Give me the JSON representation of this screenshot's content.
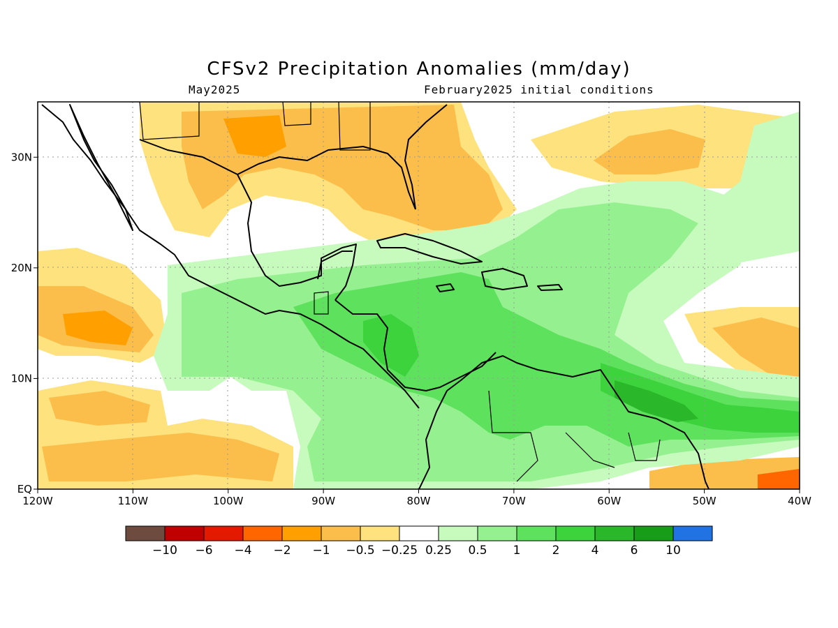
{
  "map": {
    "title": "CFSv2 Precipitation Anomalies (mm/day)",
    "valid_month": "May2025",
    "initial_conditions": "February2025 initial conditions",
    "x_ticks": [
      "120W",
      "110W",
      "100W",
      "90W",
      "80W",
      "70W",
      "60W",
      "50W",
      "40W"
    ],
    "y_ticks": [
      "EQ",
      "10N",
      "20N",
      "30N"
    ],
    "extent": {
      "lon": [
        -120,
        -40
      ],
      "lat": [
        0,
        35
      ]
    }
  },
  "colorbar": {
    "colors": [
      "#6e4b3f",
      "#c00000",
      "#e31a00",
      "#ff6600",
      "#ff9f00",
      "#fbbe4a",
      "#fde27e",
      "#ffffff",
      "#c6fbbd",
      "#95f08f",
      "#5ee25e",
      "#3cd33c",
      "#2ab82a",
      "#179d17",
      "#2173e3"
    ],
    "labels": [
      "−10",
      "−6",
      "−4",
      "−2",
      "−1",
      "−0.5",
      "−0.25",
      "0.25",
      "0.5",
      "1",
      "2",
      "4",
      "6",
      "10"
    ]
  },
  "colors": {
    "dry_strong": "#ff9f00",
    "dry": "#fbbe4a",
    "dry_light": "#fde27e",
    "wet_light": "#c6fbbd",
    "wet": "#95f08f",
    "wet_mid": "#5ee25e",
    "wet_strong": "#3cd33c",
    "wet_max": "#179d17",
    "coast": "#000000",
    "grid": "#9a9a9a"
  }
}
